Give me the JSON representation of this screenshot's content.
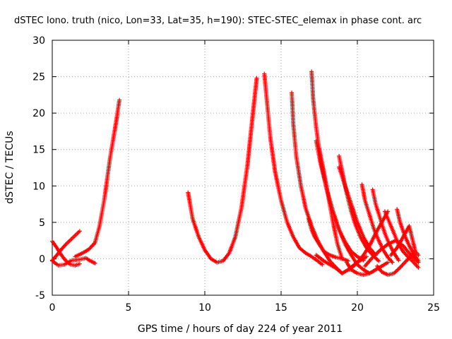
{
  "chart_data": {
    "type": "scatter",
    "title": "dSTEC Iono. truth (nico, Lon=33, Lat=35, h=190): STEC-STEC_elemax in phase cont. arc",
    "xlabel": "GPS time / hours of day 224 of year 2011",
    "ylabel": "dSTEC  / TECUs",
    "xlim": [
      0,
      25
    ],
    "ylim": [
      -5,
      30
    ],
    "xticks": [
      0,
      5,
      10,
      15,
      20,
      25
    ],
    "yticks": [
      -5,
      0,
      5,
      10,
      15,
      20,
      25,
      30
    ],
    "grid": true,
    "marker": "+",
    "color": "#ff0000",
    "series": [
      {
        "x": [
          0.0,
          0.3,
          0.6,
          0.9,
          1.2,
          1.5,
          1.8
        ],
        "y": [
          2.4,
          1.5,
          0.5,
          -0.3,
          -0.8,
          -0.9,
          -0.7
        ]
      },
      {
        "x": [
          0.0,
          0.3,
          0.6,
          0.9,
          1.2,
          1.5,
          1.8
        ],
        "y": [
          -0.2,
          0.5,
          1.3,
          2.0,
          2.6,
          3.2,
          3.8
        ]
      },
      {
        "x": [
          0.0,
          0.4,
          0.8,
          1.2
        ],
        "y": [
          -0.3,
          -0.9,
          -0.8,
          -0.3
        ]
      },
      {
        "x": [
          1.5,
          2.0,
          2.4,
          2.8,
          3.1,
          3.4,
          3.6,
          3.8,
          4.0,
          4.2,
          4.4
        ],
        "y": [
          0.3,
          0.8,
          1.3,
          2.2,
          4.5,
          8.0,
          11.0,
          14.0,
          16.5,
          19.0,
          21.8
        ]
      },
      {
        "x": [
          1.3,
          1.8,
          2.2,
          2.5,
          2.8
        ],
        "y": [
          -0.2,
          -0.1,
          0.1,
          -0.3,
          -0.6
        ]
      },
      {
        "x": [
          8.9,
          9.2,
          9.6,
          10.0,
          10.4,
          10.8,
          11.2,
          11.6,
          12.0,
          12.4,
          12.8,
          13.1,
          13.4
        ],
        "y": [
          9.1,
          5.5,
          3.0,
          1.2,
          0.0,
          -0.5,
          -0.3,
          0.8,
          3.0,
          7.0,
          13.0,
          19.0,
          24.8
        ]
      },
      {
        "x": [
          13.9,
          14.1,
          14.3,
          14.6,
          15.0,
          15.4,
          15.8,
          16.2,
          16.6,
          17.0,
          17.4,
          17.7
        ],
        "y": [
          25.4,
          21.0,
          16.5,
          12.0,
          8.0,
          5.0,
          3.0,
          1.5,
          0.8,
          0.3,
          -0.3,
          -0.8
        ]
      },
      {
        "x": [
          15.7,
          15.8,
          16.0,
          16.3,
          16.6,
          17.0,
          17.4,
          17.8,
          18.2,
          18.6,
          19.0
        ],
        "y": [
          22.8,
          18.5,
          14.0,
          10.0,
          7.0,
          4.5,
          2.5,
          1.0,
          -0.3,
          -1.2,
          -2.0
        ]
      },
      {
        "x": [
          16.8,
          17.0,
          17.2,
          17.5,
          17.8,
          18.2,
          18.6,
          19.0,
          19.4
        ],
        "y": [
          5.5,
          4.0,
          3.0,
          2.0,
          1.0,
          0.5,
          0.2,
          0.0,
          -0.3
        ]
      },
      {
        "x": [
          17.0,
          17.1,
          17.3,
          17.6,
          18.0,
          18.4,
          18.8,
          19.2,
          19.6,
          20.0,
          20.4,
          20.8
        ],
        "y": [
          25.7,
          22.0,
          18.0,
          13.5,
          9.5,
          6.5,
          4.0,
          2.0,
          0.5,
          -0.8,
          -1.5,
          -2.0
        ]
      },
      {
        "x": [
          17.3,
          17.6,
          18.0,
          18.4,
          18.8,
          19.2,
          19.6,
          20.0,
          20.4
        ],
        "y": [
          16.2,
          13.0,
          9.5,
          6.5,
          4.0,
          2.3,
          1.0,
          0.3,
          -0.2
        ]
      },
      {
        "x": [
          17.5,
          17.8,
          18.1,
          18.4,
          18.7,
          19.0
        ],
        "y": [
          15.1,
          12.0,
          8.5,
          5.0,
          2.0,
          0.0
        ]
      },
      {
        "x": [
          17.3,
          17.5,
          17.8,
          18.2,
          18.6,
          19.0,
          19.4,
          19.8,
          20.2,
          20.6
        ],
        "y": [
          0.5,
          0.2,
          -0.3,
          -0.8,
          -1.3,
          -2.0,
          -1.5,
          -0.8,
          -0.2,
          0.3
        ]
      },
      {
        "x": [
          18.8,
          19.0,
          19.3,
          19.6,
          19.9,
          20.2,
          20.6,
          21.0,
          21.4
        ],
        "y": [
          14.1,
          12.0,
          9.0,
          6.5,
          4.5,
          3.0,
          1.5,
          0.5,
          -0.3
        ]
      },
      {
        "x": [
          18.8,
          19.2,
          19.6,
          20.0,
          20.4,
          20.8,
          21.2
        ],
        "y": [
          12.6,
          10.0,
          7.5,
          5.0,
          3.0,
          1.5,
          0.5
        ]
      },
      {
        "x": [
          19.3,
          19.6,
          20.0,
          20.4,
          20.8,
          21.2,
          21.6,
          22.0
        ],
        "y": [
          -0.5,
          -1.5,
          -2.0,
          -2.2,
          -2.0,
          -1.5,
          -1.0,
          -0.5
        ]
      },
      {
        "x": [
          19.5,
          20.0,
          20.4,
          20.8,
          21.2,
          21.6,
          22.0
        ],
        "y": [
          -1.5,
          -0.5,
          0.5,
          1.8,
          3.5,
          5.0,
          6.5
        ]
      },
      {
        "x": [
          20.3,
          20.5,
          20.8,
          21.1,
          21.4,
          21.7,
          22.0,
          22.3
        ],
        "y": [
          10.2,
          8.0,
          6.0,
          4.0,
          2.5,
          1.2,
          0.2,
          -0.5
        ]
      },
      {
        "x": [
          21.0,
          21.2,
          21.5,
          21.8,
          22.1,
          22.4,
          22.7
        ],
        "y": [
          9.5,
          7.5,
          5.5,
          3.5,
          2.0,
          0.8,
          -0.2
        ]
      },
      {
        "x": [
          20.5,
          21.0,
          21.5,
          22.0,
          22.5,
          23.0,
          23.5,
          24.0
        ],
        "y": [
          -1.0,
          0.2,
          1.2,
          2.0,
          2.5,
          1.8,
          0.5,
          -0.5
        ]
      },
      {
        "x": [
          21.3,
          21.6,
          22.0,
          22.4,
          22.8,
          23.2,
          23.6
        ],
        "y": [
          -1.0,
          -1.8,
          -2.2,
          -2.0,
          -1.2,
          -0.3,
          0.5
        ]
      },
      {
        "x": [
          21.8,
          22.1,
          22.4,
          22.7,
          23.0,
          23.3,
          23.6,
          24.0
        ],
        "y": [
          6.5,
          5.0,
          3.5,
          2.0,
          1.0,
          0.3,
          -0.3,
          -1.2
        ]
      },
      {
        "x": [
          22.6,
          22.8,
          23.1,
          23.4,
          23.7,
          24.0
        ],
        "y": [
          6.8,
          5.0,
          3.2,
          1.8,
          0.6,
          -0.3
        ]
      },
      {
        "x": [
          22.2,
          22.6,
          23.0,
          23.4,
          23.8,
          24.0
        ],
        "y": [
          0.5,
          1.5,
          3.0,
          4.5,
          1.0,
          0.5
        ]
      }
    ]
  }
}
